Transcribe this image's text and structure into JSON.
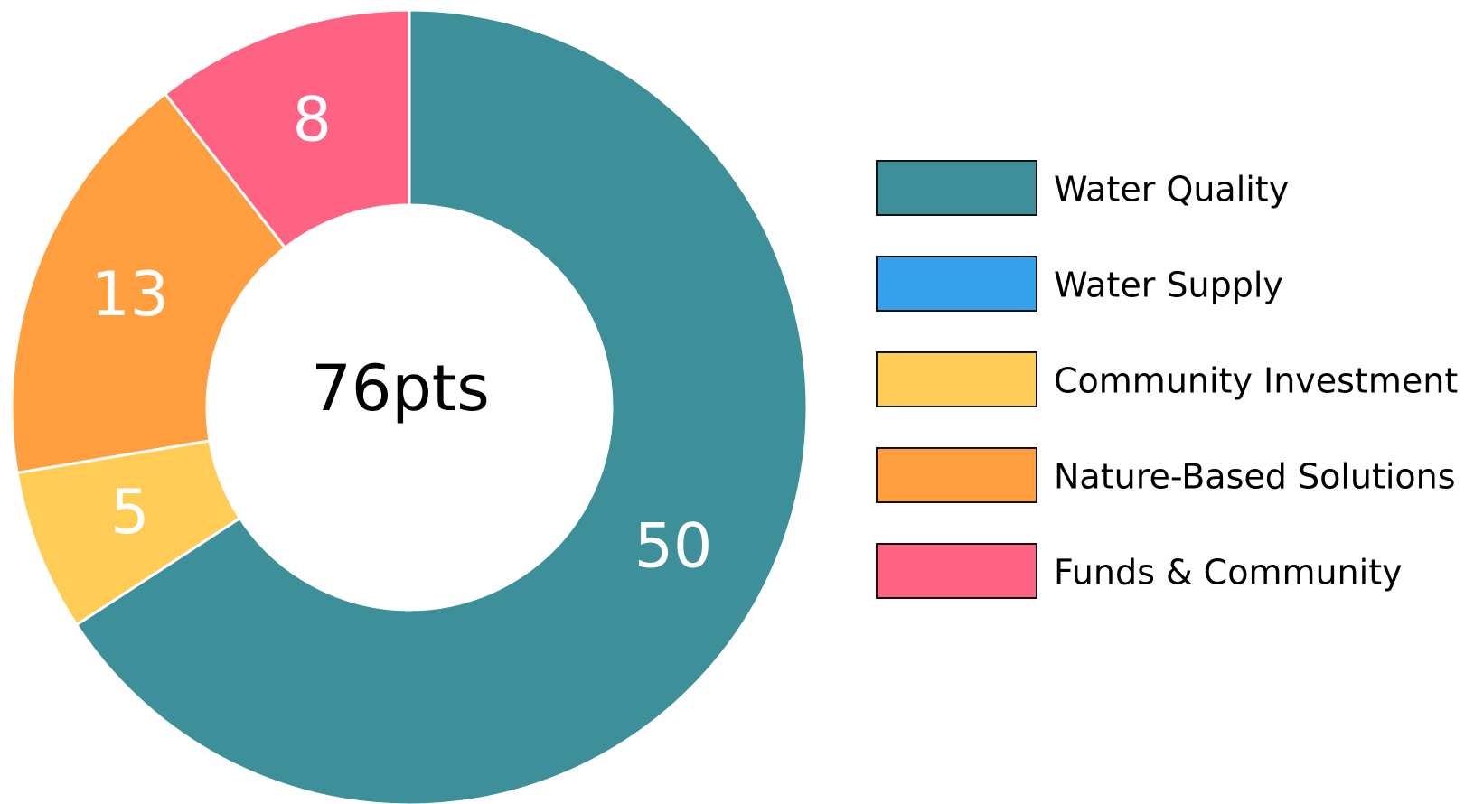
{
  "chart_data": {
    "type": "donut",
    "center_label": "76pts",
    "series": [
      {
        "name": "Water Quality",
        "color": "#3d8f99",
        "values": [
          50
        ]
      },
      {
        "name": "Water Supply",
        "color": "#36a2eb",
        "values": [
          0
        ]
      },
      {
        "name": "Community Investment",
        "color": "#ffcd56",
        "values": [
          5
        ]
      },
      {
        "name": "Nature-Based Solutions",
        "color": "#ff9f40",
        "values": [
          13
        ]
      },
      {
        "name": "Funds & Community",
        "color": "#ff6384",
        "values": [
          8
        ]
      }
    ],
    "legend": "right"
  }
}
